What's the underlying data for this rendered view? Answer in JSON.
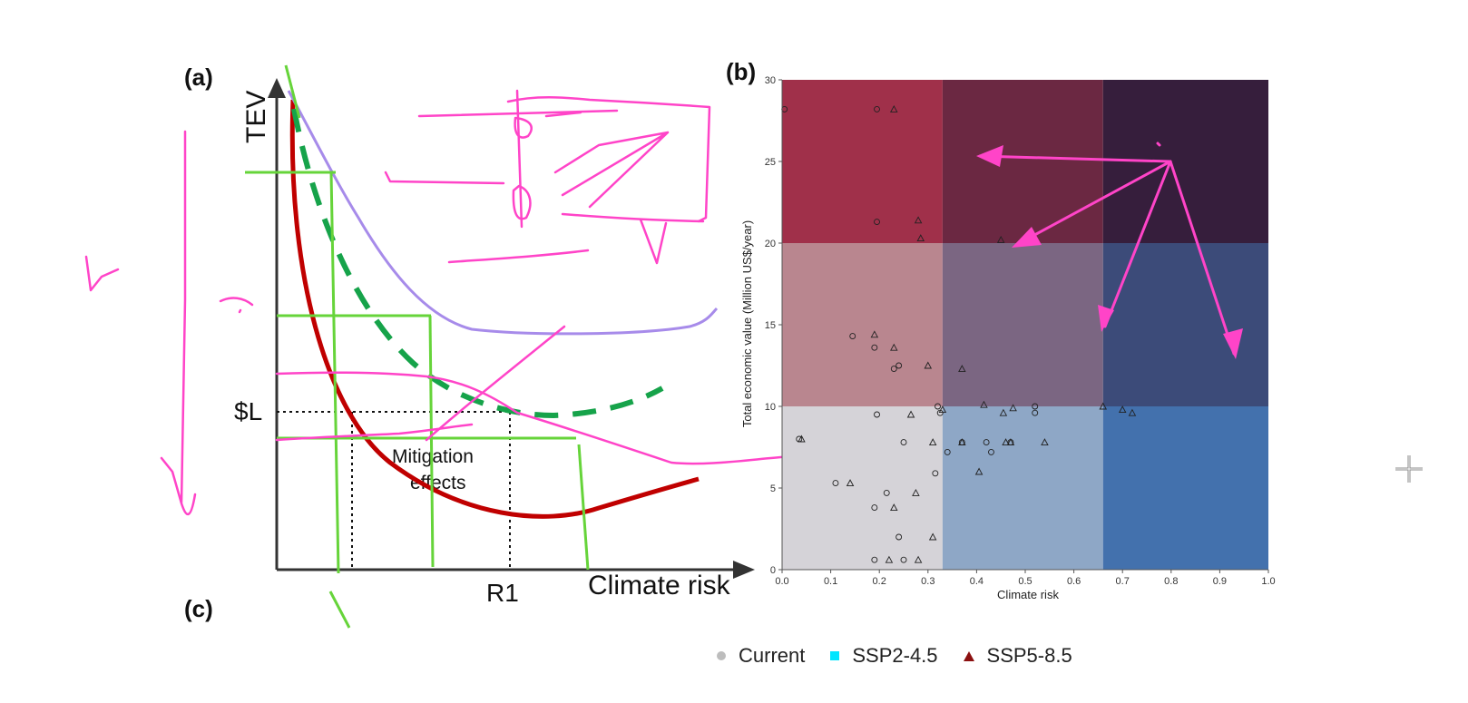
{
  "panels": {
    "a": "(a)",
    "b": "(b)",
    "c": "(c)"
  },
  "conceptual": {
    "y_label": "TEV",
    "x_label": "Climate risk",
    "threshold_label": "$L",
    "risk_label": "R1",
    "annotation": "Mitigation\neffects"
  },
  "chart_data": {
    "type": "scatter",
    "title": "",
    "xlabel": "Climate risk",
    "ylabel": "Total economic value (Million US$/year)",
    "xlim": [
      0,
      1
    ],
    "ylim": [
      0,
      30
    ],
    "x_ticks": [
      "0.0",
      "0.1",
      "0.2",
      "0.3",
      "0.4",
      "0.5",
      "0.6",
      "0.7",
      "0.8",
      "0.9",
      "1.0"
    ],
    "y_ticks": [
      "0",
      "5",
      "10",
      "15",
      "20",
      "25",
      "30"
    ],
    "quadrants": {
      "x_breaks": [
        0,
        0.33,
        0.66,
        1.0
      ],
      "y_breaks": [
        0,
        10,
        20,
        30
      ],
      "colors_bottom_to_top": [
        [
          "#d5d3d8",
          "#8ea7c6",
          "#4371ad"
        ],
        [
          "#b9868f",
          "#7b6682",
          "#3c4b79"
        ],
        [
          "#a0304a",
          "#6b2842",
          "#361e3c"
        ]
      ]
    },
    "series": [
      {
        "name": "Current",
        "marker": "circle",
        "color": "#bdbdbd",
        "points": [
          [
            0.005,
            28.2
          ],
          [
            0.195,
            28.2
          ],
          [
            0.195,
            21.3
          ],
          [
            0.145,
            14.3
          ],
          [
            0.19,
            13.6
          ],
          [
            0.23,
            12.3
          ],
          [
            0.24,
            12.5
          ],
          [
            0.195,
            9.5
          ],
          [
            0.32,
            10.0
          ],
          [
            0.325,
            9.6
          ],
          [
            0.25,
            7.8
          ],
          [
            0.34,
            7.2
          ],
          [
            0.37,
            7.8
          ],
          [
            0.42,
            7.8
          ],
          [
            0.47,
            7.8
          ],
          [
            0.52,
            10.0
          ],
          [
            0.52,
            9.6
          ],
          [
            0.11,
            5.3
          ],
          [
            0.215,
            4.7
          ],
          [
            0.19,
            3.8
          ],
          [
            0.24,
            2.0
          ],
          [
            0.19,
            0.6
          ],
          [
            0.25,
            0.6
          ],
          [
            0.315,
            5.9
          ],
          [
            0.43,
            7.2
          ],
          [
            0.035,
            8.0
          ]
        ]
      },
      {
        "name": "SSP2-4.5",
        "marker": "square",
        "color": "#00e5ff",
        "points": []
      },
      {
        "name": "SSP5-8.5",
        "marker": "triangle",
        "color": "#8b1010",
        "points": [
          [
            0.23,
            28.2
          ],
          [
            0.28,
            21.4
          ],
          [
            0.285,
            20.3
          ],
          [
            0.45,
            20.2
          ],
          [
            0.19,
            14.4
          ],
          [
            0.23,
            13.6
          ],
          [
            0.3,
            12.5
          ],
          [
            0.37,
            12.3
          ],
          [
            0.265,
            9.5
          ],
          [
            0.33,
            9.8
          ],
          [
            0.415,
            10.1
          ],
          [
            0.455,
            9.6
          ],
          [
            0.475,
            9.9
          ],
          [
            0.31,
            7.8
          ],
          [
            0.37,
            7.8
          ],
          [
            0.46,
            7.8
          ],
          [
            0.47,
            7.8
          ],
          [
            0.54,
            7.8
          ],
          [
            0.66,
            10.0
          ],
          [
            0.7,
            9.8
          ],
          [
            0.72,
            9.6
          ],
          [
            0.14,
            5.3
          ],
          [
            0.275,
            4.7
          ],
          [
            0.23,
            3.8
          ],
          [
            0.31,
            2.0
          ],
          [
            0.22,
            0.6
          ],
          [
            0.28,
            0.6
          ],
          [
            0.04,
            8.0
          ],
          [
            0.405,
            6.0
          ]
        ]
      }
    ]
  },
  "legend": [
    {
      "label": "Current",
      "color": "#bdbdbd",
      "marker": "circle"
    },
    {
      "label": "SSP2-4.5",
      "color": "#00e5ff",
      "marker": "square"
    },
    {
      "label": "SSP5-8.5",
      "color": "#8b1010",
      "marker": "triangle"
    }
  ]
}
